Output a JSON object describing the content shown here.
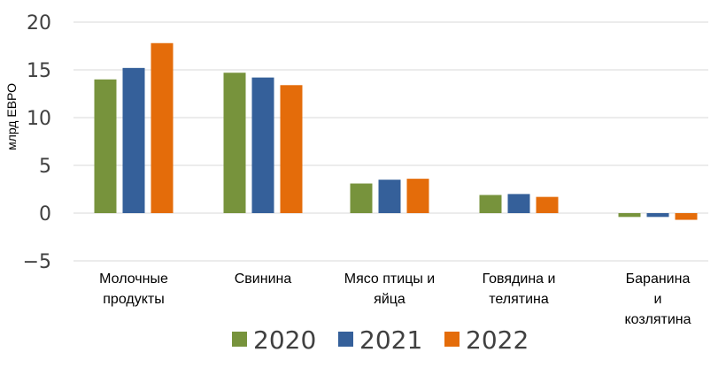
{
  "chart_data": {
    "type": "bar",
    "ylabel": "млрд ЕВРО",
    "xlabel": "",
    "ylim": [
      -5,
      20
    ],
    "yticks": [
      -5,
      0,
      5,
      10,
      15,
      20
    ],
    "ytick_labels": [
      "−5",
      "0",
      "5",
      "10",
      "15",
      "20"
    ],
    "grid": true,
    "legend_position": "bottom",
    "categories": [
      [
        "Молочные",
        "продукты"
      ],
      [
        "Свинина"
      ],
      [
        "Мясо птицы и",
        "яйца"
      ],
      [
        "Говядина и",
        "телятина"
      ],
      [
        "Баранина",
        "и",
        "козлятина"
      ]
    ],
    "series": [
      {
        "name": "2020",
        "color": "#77933C",
        "values": [
          14.0,
          14.7,
          3.1,
          1.9,
          -0.4
        ]
      },
      {
        "name": "2021",
        "color": "#35609A",
        "values": [
          15.2,
          14.2,
          3.5,
          2.0,
          -0.4
        ]
      },
      {
        "name": "2022",
        "color": "#E46C0A",
        "values": [
          17.8,
          13.4,
          3.6,
          1.7,
          -0.7
        ]
      }
    ]
  }
}
